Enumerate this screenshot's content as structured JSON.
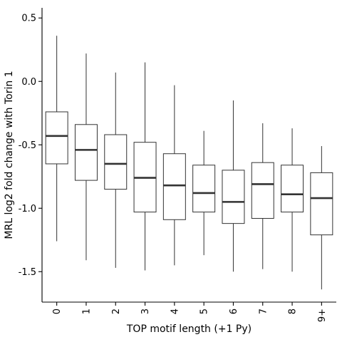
{
  "chart_data": {
    "type": "boxplot",
    "xlabel": "TOP motif length (+1 Py)",
    "ylabel": "MRL log2 fold change with Torin 1",
    "ylim": [
      -1.74,
      0.58
    ],
    "yticks": [
      0.5,
      0.0,
      -0.5,
      -1.0,
      -1.5
    ],
    "ytick_labels": [
      "0.5",
      "0.0",
      "-0.5",
      "-1.0",
      "-1.5"
    ],
    "categories": [
      "0",
      "1",
      "2",
      "3",
      "4",
      "5",
      "6",
      "7",
      "8",
      "9+"
    ],
    "boxes": [
      {
        "category": "0",
        "whisker_low": -1.26,
        "q1": -0.65,
        "median": -0.43,
        "q3": -0.24,
        "whisker_high": 0.36
      },
      {
        "category": "1",
        "whisker_low": -1.41,
        "q1": -0.78,
        "median": -0.54,
        "q3": -0.34,
        "whisker_high": 0.22
      },
      {
        "category": "2",
        "whisker_low": -1.47,
        "q1": -0.85,
        "median": -0.65,
        "q3": -0.42,
        "whisker_high": 0.07
      },
      {
        "category": "3",
        "whisker_low": -1.49,
        "q1": -1.03,
        "median": -0.76,
        "q3": -0.48,
        "whisker_high": 0.15
      },
      {
        "category": "4",
        "whisker_low": -1.45,
        "q1": -1.09,
        "median": -0.82,
        "q3": -0.57,
        "whisker_high": -0.03
      },
      {
        "category": "5",
        "whisker_low": -1.37,
        "q1": -1.03,
        "median": -0.88,
        "q3": -0.66,
        "whisker_high": -0.39
      },
      {
        "category": "6",
        "whisker_low": -1.5,
        "q1": -1.12,
        "median": -0.95,
        "q3": -0.7,
        "whisker_high": -0.15
      },
      {
        "category": "7",
        "whisker_low": -1.48,
        "q1": -1.08,
        "median": -0.81,
        "q3": -0.64,
        "whisker_high": -0.33
      },
      {
        "category": "8",
        "whisker_low": -1.5,
        "q1": -1.03,
        "median": -0.89,
        "q3": -0.66,
        "whisker_high": -0.37
      },
      {
        "category": "9+",
        "whisker_low": -1.64,
        "q1": -1.21,
        "median": -0.92,
        "q3": -0.72,
        "whisker_high": -0.51
      }
    ],
    "grid": false,
    "legend": "none",
    "colors": {
      "box_stroke": "#333333",
      "box_fill": "#ffffff",
      "axis": "#000000"
    }
  }
}
